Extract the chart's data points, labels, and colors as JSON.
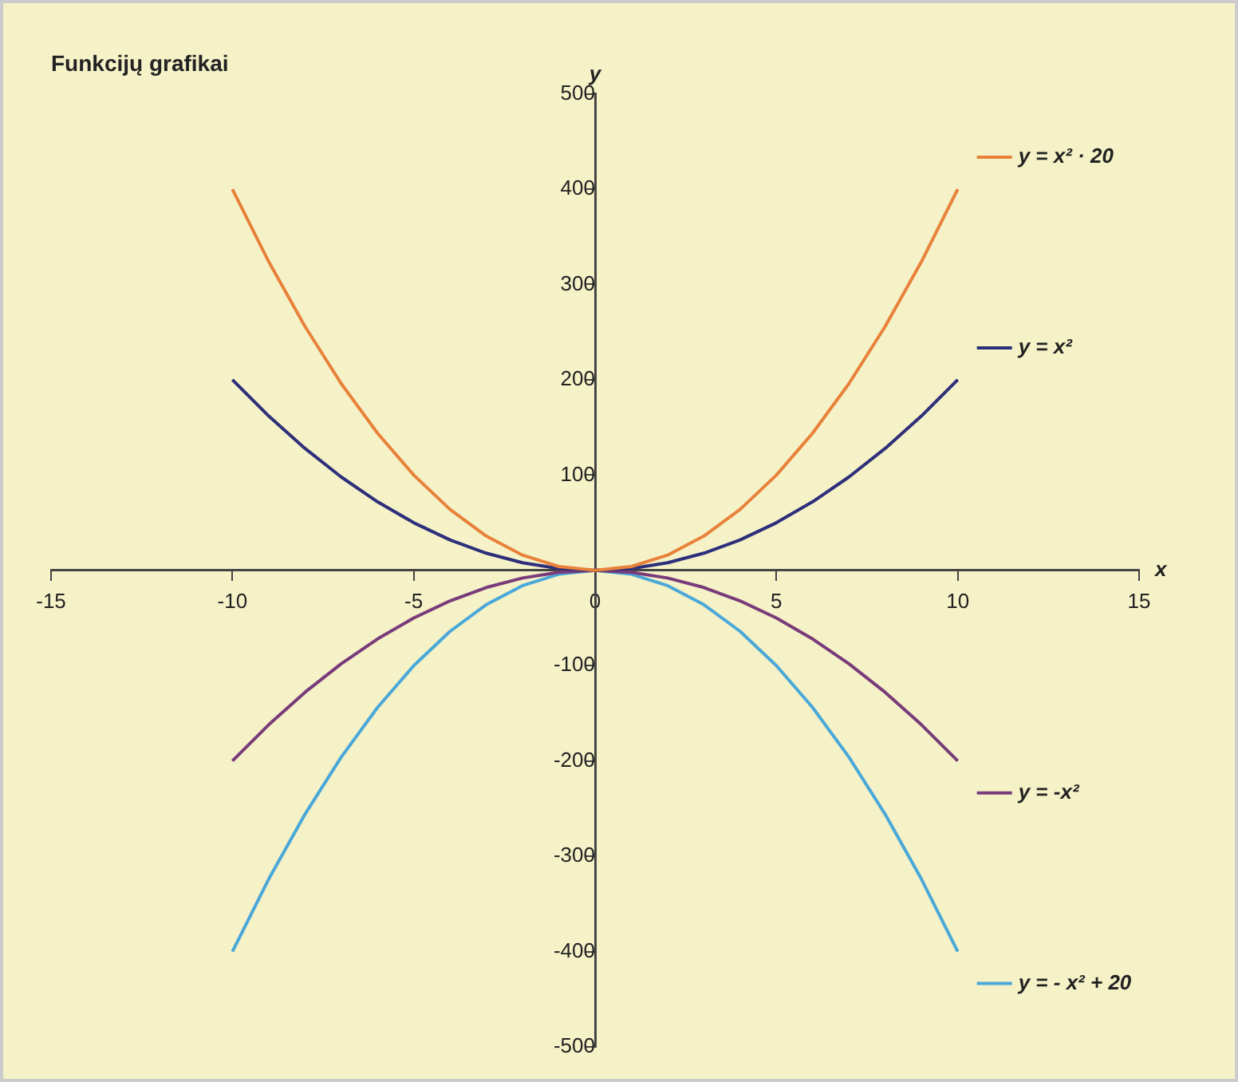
{
  "chart_data": {
    "type": "line",
    "title": "Funkcijų grafikai",
    "xlabel": "x",
    "ylabel": "y",
    "x": [
      -10,
      -9,
      -8,
      -7,
      -6,
      -5,
      -4,
      -3,
      -2,
      -1,
      0,
      1,
      2,
      3,
      4,
      5,
      6,
      7,
      8,
      9,
      10
    ],
    "series": [
      {
        "name": "y = x² · 20",
        "color": "#e8823a",
        "values": [
          400,
          324,
          256,
          196,
          144,
          100,
          64,
          36,
          16,
          4,
          0,
          4,
          16,
          36,
          64,
          100,
          144,
          196,
          256,
          324,
          400
        ]
      },
      {
        "name": "y = x²",
        "color": "#2e2f7a",
        "values": [
          200,
          162,
          128,
          98,
          72,
          50,
          32,
          18,
          8,
          2,
          0,
          2,
          8,
          18,
          32,
          50,
          72,
          98,
          128,
          162,
          200
        ]
      },
      {
        "name": "y = -x²",
        "color": "#7a3b7a",
        "values": [
          -200,
          -162,
          -128,
          -98,
          -72,
          -50,
          -32,
          -18,
          -8,
          -2,
          0,
          -2,
          -8,
          -18,
          -32,
          -50,
          -72,
          -98,
          -128,
          -162,
          -200
        ]
      },
      {
        "name": "y = - x² + 20",
        "color": "#4aa8d8",
        "values": [
          -400,
          -324,
          -256,
          -196,
          -144,
          -100,
          -64,
          -36,
          -16,
          -4,
          0,
          -4,
          -16,
          -36,
          -64,
          -100,
          -144,
          -196,
          -256,
          -324,
          -400
        ]
      }
    ],
    "xlim": [
      -15,
      15
    ],
    "xticks": [
      -15,
      -10,
      -5,
      0,
      5,
      10,
      15
    ],
    "ylim": [
      -500,
      500
    ],
    "yticks": [
      -500,
      -400,
      -300,
      -200,
      -100,
      {
        "value": 0,
        "label": null
      },
      100,
      200,
      300,
      400,
      500
    ],
    "grid": false,
    "legend": "right",
    "marker": "none",
    "line_style": "solid"
  }
}
